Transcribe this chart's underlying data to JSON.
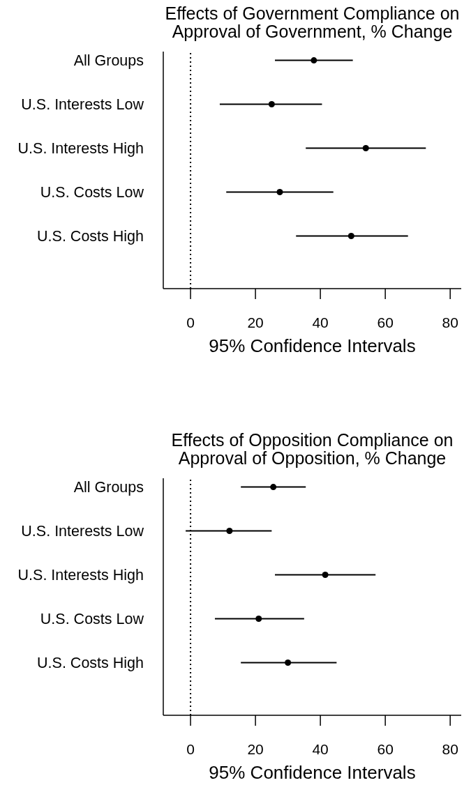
{
  "chart_data": [
    {
      "type": "scatter",
      "title": "Effects of Government Compliance on\nApproval of Government, % Change",
      "xlabel": "95% Confidence Intervals",
      "orientation": "horizontal",
      "categories": [
        "All Groups",
        "U.S. Interests Low",
        "U.S. Interests High",
        "U.S. Costs Low",
        "U.S. Costs High"
      ],
      "values": [
        38,
        25,
        54,
        27.5,
        49.5
      ],
      "errors": [
        [
          26,
          50
        ],
        [
          9,
          40.5
        ],
        [
          35.5,
          72.5
        ],
        [
          11,
          44
        ],
        [
          32.5,
          67
        ]
      ],
      "color": "#000000",
      "marker": "circle",
      "xlim": [
        -8.4,
        83.4
      ],
      "xticks": [
        0,
        20,
        40,
        60,
        80
      ],
      "ref_lines": [
        {
          "axis": "x",
          "value": 0,
          "color": "#000000",
          "line_style": "dotted"
        }
      ]
    },
    {
      "type": "scatter",
      "title": "Effects of Opposition Compliance on\nApproval of Opposition, % Change",
      "xlabel": "95% Confidence Intervals",
      "orientation": "horizontal",
      "categories": [
        "All Groups",
        "U.S. Interests Low",
        "U.S. Interests High",
        "U.S. Costs Low",
        "U.S. Costs High"
      ],
      "values": [
        25.5,
        12,
        41.5,
        21,
        30
      ],
      "errors": [
        [
          15.5,
          35.5
        ],
        [
          -1.5,
          25
        ],
        [
          26,
          57
        ],
        [
          7.5,
          35
        ],
        [
          15.5,
          45
        ]
      ],
      "color": "#000000",
      "marker": "circle",
      "xlim": [
        -8.4,
        83.4
      ],
      "xticks": [
        0,
        20,
        40,
        60,
        80
      ],
      "ref_lines": [
        {
          "axis": "x",
          "value": 0,
          "color": "#000000",
          "line_style": "dotted"
        }
      ]
    }
  ]
}
